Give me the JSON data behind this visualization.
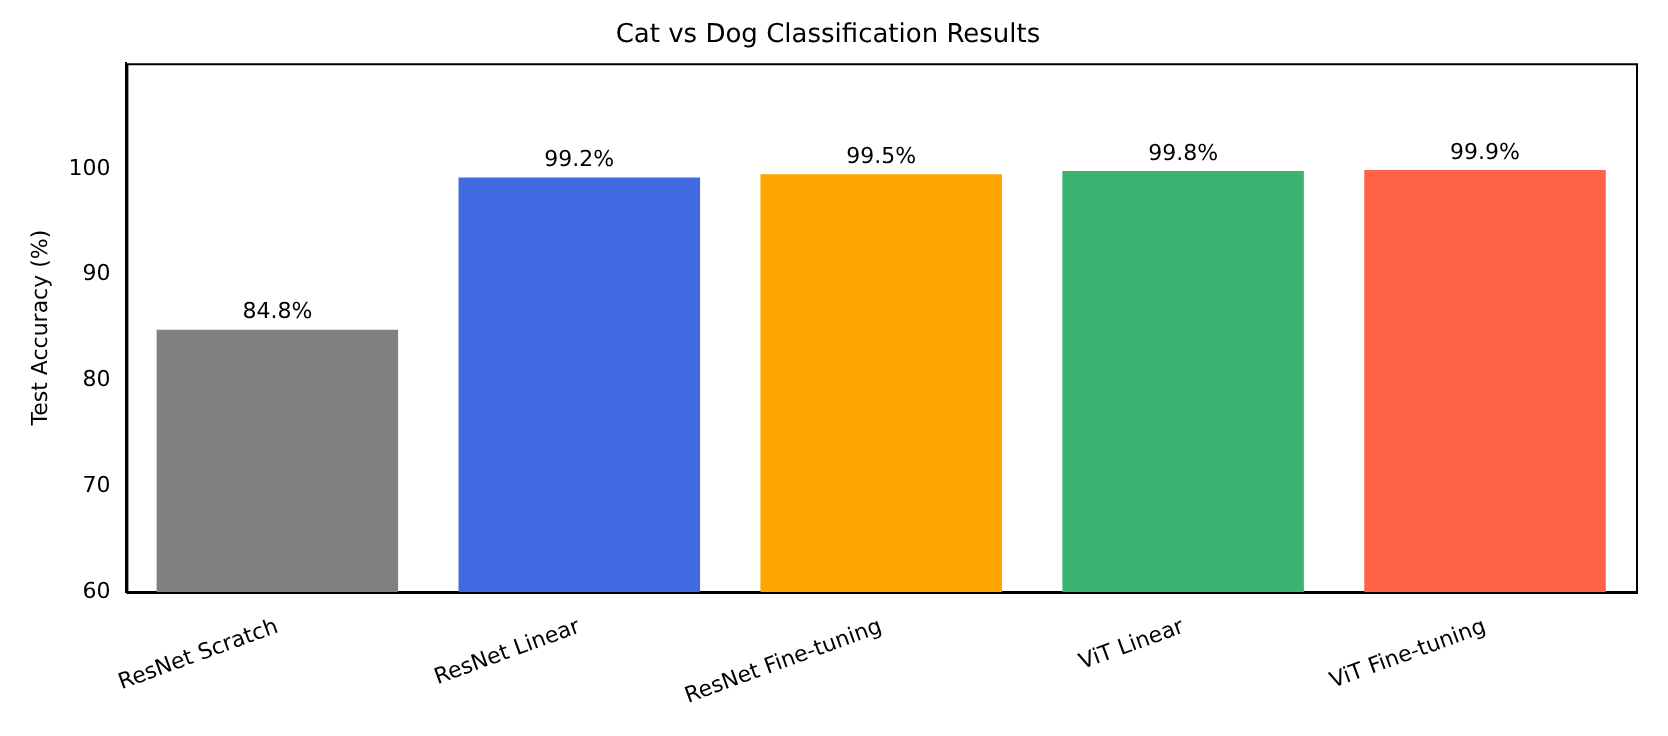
{
  "chart_data": {
    "type": "bar",
    "title": "Cat vs Dog Classification Results",
    "ylabel": "Test Accuracy (%)",
    "categories": [
      "ResNet Scratch",
      "ResNet Linear",
      "ResNet Fine-tuning",
      "ViT Linear",
      "ViT Fine-tuning"
    ],
    "values": [
      84.8,
      99.2,
      99.5,
      99.8,
      99.9
    ],
    "colors": [
      "#808080",
      "#4169e1",
      "#ffa500",
      "#3cb371",
      "#ff6347"
    ],
    "value_labels": [
      "84.8%",
      "99.2%",
      "99.5%",
      "99.8%",
      "99.9%"
    ],
    "ylim": [
      60,
      110
    ],
    "yticks": [
      60,
      70,
      80,
      90,
      100
    ],
    "grid": false,
    "legend": false
  }
}
